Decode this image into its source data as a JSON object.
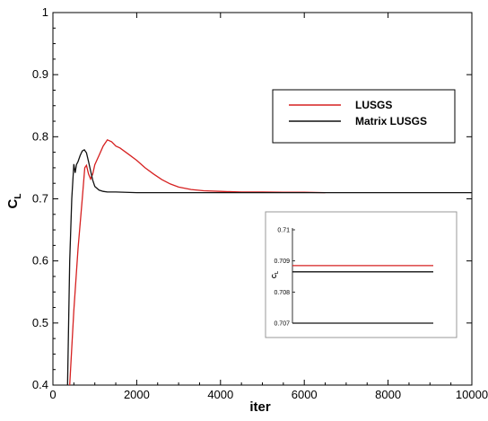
{
  "chart_data": {
    "type": "line",
    "title": "",
    "xlabel": "iter",
    "ylabel": "C",
    "ylabel_subscript": "L",
    "xlim": [
      0,
      10000
    ],
    "ylim": [
      0.4,
      1.0
    ],
    "x_ticks": [
      "0",
      "2000",
      "4000",
      "6000",
      "8000",
      "10000"
    ],
    "y_ticks": [
      "0.4",
      "0.5",
      "0.6",
      "0.7",
      "0.8",
      "0.9",
      "1"
    ],
    "grid": false,
    "legend_position": "upper-right",
    "series": [
      {
        "name": "LUSGS",
        "color": "#d62020",
        "x": [
          400,
          500,
          600,
          700,
          760,
          800,
          850,
          900,
          950,
          1000,
          1100,
          1200,
          1300,
          1400,
          1500,
          1600,
          1800,
          2000,
          2200,
          2400,
          2600,
          2800,
          3000,
          3300,
          3600,
          4000,
          4500,
          5000,
          5500,
          6000,
          6500
        ],
        "y": [
          0.4,
          0.52,
          0.62,
          0.7,
          0.75,
          0.754,
          0.74,
          0.732,
          0.74,
          0.755,
          0.77,
          0.785,
          0.795,
          0.792,
          0.785,
          0.782,
          0.772,
          0.762,
          0.75,
          0.74,
          0.731,
          0.724,
          0.719,
          0.715,
          0.713,
          0.712,
          0.711,
          0.711,
          0.7105,
          0.7105,
          0.71
        ]
      },
      {
        "name": "Matrix LUSGS",
        "color": "#111111",
        "x": [
          350,
          400,
          450,
          500,
          530,
          560,
          600,
          650,
          700,
          750,
          800,
          850,
          900,
          950,
          1000,
          1100,
          1200,
          1300,
          1500,
          2000,
          3000,
          5000,
          10000
        ],
        "y": [
          0.4,
          0.6,
          0.7,
          0.756,
          0.742,
          0.755,
          0.76,
          0.77,
          0.777,
          0.779,
          0.774,
          0.76,
          0.745,
          0.73,
          0.72,
          0.714,
          0.712,
          0.711,
          0.711,
          0.71,
          0.71,
          0.71,
          0.71
        ]
      }
    ],
    "inset": {
      "ylabel": "C",
      "ylabel_subscript": "L",
      "ylim": [
        0.707,
        0.71
      ],
      "y_ticks": [
        "0.707",
        "0.708",
        "0.709",
        "0.71"
      ],
      "series": [
        {
          "name": "LUSGS",
          "color": "#d62020",
          "y": 0.70885
        },
        {
          "name": "Matrix LUSGS",
          "color": "#111111",
          "y": 0.70865
        }
      ],
      "bottom_line_y": 0.707
    }
  }
}
